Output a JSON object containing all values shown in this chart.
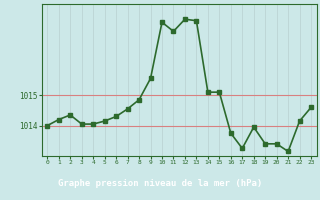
{
  "x": [
    0,
    1,
    2,
    3,
    4,
    5,
    6,
    7,
    8,
    9,
    10,
    11,
    12,
    13,
    14,
    15,
    16,
    17,
    18,
    19,
    20,
    21,
    22,
    23
  ],
  "y": [
    1014.0,
    1014.2,
    1014.35,
    1014.05,
    1014.05,
    1014.15,
    1014.3,
    1014.55,
    1014.85,
    1015.55,
    1017.4,
    1017.1,
    1017.5,
    1017.45,
    1015.1,
    1015.1,
    1013.75,
    1013.25,
    1013.95,
    1013.4,
    1013.4,
    1013.15,
    1014.15,
    1014.6
  ],
  "line_color": "#2d6a2d",
  "marker_color": "#2d6a2d",
  "bg_color": "#cce8e8",
  "plot_bg_color": "#cce8e8",
  "grid_h_color": "#d88080",
  "grid_v_color": "#b8d0d0",
  "xlabel": "Graphe pression niveau de la mer (hPa)",
  "tick_color": "#2d6a2d",
  "yticks": [
    1014,
    1015
  ],
  "ylim": [
    1013.0,
    1018.0
  ],
  "xlim": [
    -0.5,
    23.5
  ],
  "xticks": [
    0,
    1,
    2,
    3,
    4,
    5,
    6,
    7,
    8,
    9,
    10,
    11,
    12,
    13,
    14,
    15,
    16,
    17,
    18,
    19,
    20,
    21,
    22,
    23
  ],
  "border_color": "#2d6a2d"
}
